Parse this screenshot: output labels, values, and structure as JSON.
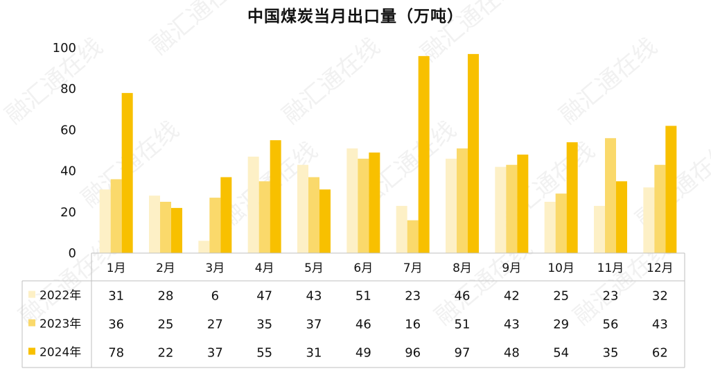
{
  "chart_data": {
    "type": "bar",
    "title": "中国煤炭当月出口量（万吨）",
    "categories": [
      "1月",
      "2月",
      "3月",
      "4月",
      "5月",
      "6月",
      "7月",
      "8月",
      "9月",
      "10月",
      "11月",
      "12月"
    ],
    "series": [
      {
        "name": "2022年",
        "color": "#FDF0C6",
        "values": [
          31,
          28,
          6,
          47,
          43,
          51,
          23,
          46,
          42,
          25,
          23,
          32
        ]
      },
      {
        "name": "2023年",
        "color": "#FAD96B",
        "values": [
          36,
          25,
          27,
          35,
          37,
          46,
          16,
          51,
          43,
          29,
          56,
          43
        ]
      },
      {
        "name": "2024年",
        "color": "#F8C000",
        "values": [
          78,
          22,
          37,
          55,
          31,
          49,
          96,
          97,
          48,
          54,
          35,
          62
        ]
      }
    ],
    "yticks": [
      0,
      20,
      40,
      60,
      80,
      100
    ],
    "ylim": [
      0,
      100
    ],
    "grid": false,
    "data_table": true,
    "watermark_text": "融汇通在线"
  }
}
